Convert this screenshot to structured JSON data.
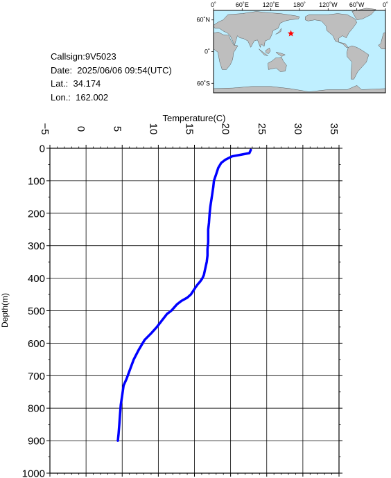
{
  "info": {
    "callsign": "Callsign:9V5023",
    "date": "Date:  2025/06/06 09:54(UTC)",
    "lat": "Lat.:  34.174",
    "lon": "Lon.:  162.002"
  },
  "map": {
    "top_labels": [
      "0˚",
      "60˚E",
      "120˚E",
      "180˚",
      "120˚W",
      "60˚W",
      "0˚"
    ],
    "left_labels": [
      "60˚N",
      "0˚",
      "60˚S"
    ],
    "station_lon": 162.002,
    "station_lat": 34.174,
    "ocean_color": "#bfefff",
    "land_color": "#bebebe",
    "marker_color": "#ff0000"
  },
  "chart_data": {
    "type": "line",
    "title": "",
    "xlabel": "Temperature(C)",
    "ylabel": "Depth(m)",
    "xlim": [
      -5,
      35
    ],
    "ylim": [
      0,
      1000
    ],
    "y_inverted": true,
    "x_axis_position": "top",
    "grid": true,
    "x_ticks": [
      -5,
      0,
      5,
      10,
      15,
      20,
      25,
      30,
      35
    ],
    "y_ticks": [
      0,
      100,
      200,
      300,
      400,
      500,
      600,
      700,
      800,
      900,
      1000
    ],
    "line_color": "#0000ff",
    "series": [
      {
        "x": [
          22.8,
          22.6,
          21.4,
          20.2,
          19.3,
          18.7,
          18.3,
          18.0,
          17.7,
          17.6,
          17.4,
          17.2,
          17.1,
          17.0,
          16.9,
          16.9,
          16.9,
          16.8,
          16.8,
          16.7,
          16.5,
          16.3,
          16.1,
          15.8,
          15.4,
          15.1,
          14.8,
          14.5,
          14.0,
          13.2,
          12.6,
          12.2,
          11.8,
          11.2,
          10.5,
          9.8,
          9.0,
          8.1,
          7.3,
          6.6,
          6.1,
          5.6,
          5.2,
          5.0,
          4.8,
          4.7,
          4.6,
          4.5,
          4.4
        ],
        "y": [
          5,
          15,
          20,
          25,
          35,
          45,
          60,
          80,
          100,
          120,
          150,
          180,
          200,
          230,
          250,
          270,
          290,
          310,
          330,
          350,
          370,
          390,
          400,
          410,
          420,
          430,
          440,
          450,
          460,
          470,
          480,
          490,
          500,
          510,
          530,
          550,
          570,
          590,
          620,
          650,
          680,
          710,
          730,
          760,
          790,
          820,
          850,
          880,
          900
        ]
      }
    ]
  }
}
